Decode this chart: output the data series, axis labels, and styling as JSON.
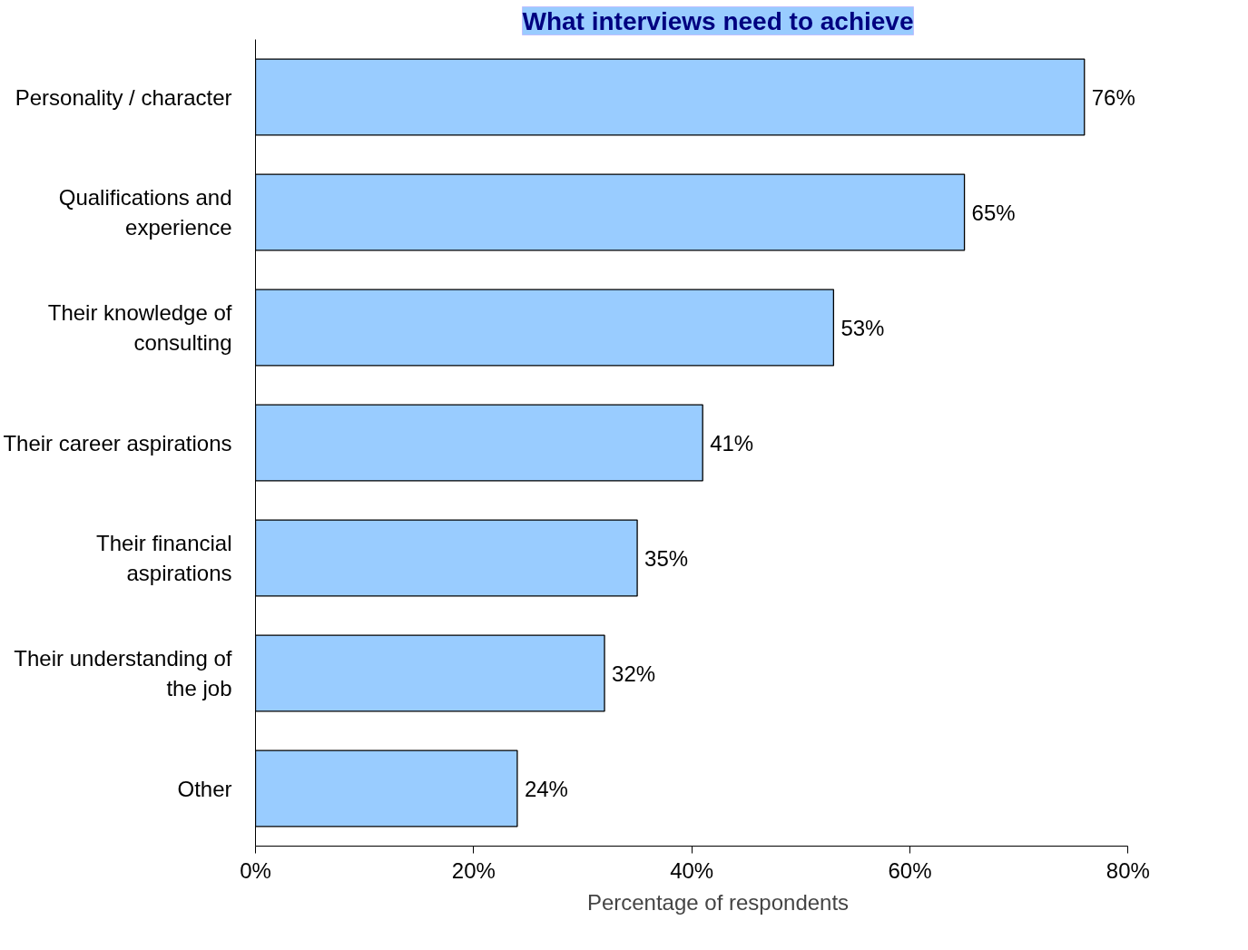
{
  "chart_data": {
    "type": "bar",
    "orientation": "horizontal",
    "title": "What interviews need to achieve",
    "xlabel": "Percentage of respondents",
    "categories": [
      "Personality / character",
      "Qualifications and\nexperience",
      "Their knowledge of\nconsulting",
      "Their career aspirations",
      "Their financial\naspirations",
      "Their understanding of\nthe job",
      "Other"
    ],
    "values": [
      76,
      65,
      53,
      41,
      35,
      32,
      24
    ],
    "value_labels": [
      "76%",
      "65%",
      "53%",
      "41%",
      "35%",
      "32%",
      "24%"
    ],
    "color": "#99ccff",
    "xlim": [
      0,
      80
    ],
    "xticks": [
      {
        "value": 0,
        "label": "0%"
      },
      {
        "value": 20,
        "label": "20%"
      },
      {
        "value": 40,
        "label": "40%"
      },
      {
        "value": 60,
        "label": "60%"
      },
      {
        "value": 80,
        "label": "80%"
      }
    ],
    "grid": false
  }
}
